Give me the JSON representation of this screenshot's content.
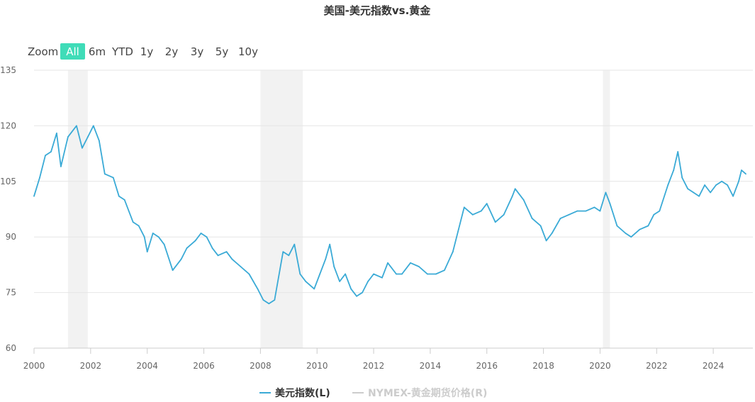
{
  "chart_data": {
    "type": "line",
    "title": "美国-美元指数vs.黄金",
    "zoom": {
      "label": "Zoom",
      "buttons": [
        "All",
        "6m",
        "YTD",
        "1y",
        "2y",
        "3y",
        "5y",
        "10y"
      ],
      "selected": "All"
    },
    "xlim": [
      2000,
      2025.4
    ],
    "ylim": [
      60,
      135
    ],
    "yticks": [
      60,
      75,
      90,
      105,
      120,
      135
    ],
    "xticks": [
      2000,
      2002,
      2004,
      2006,
      2008,
      2010,
      2012,
      2014,
      2016,
      2018,
      2020,
      2022,
      2024
    ],
    "grid": true,
    "legend_position": "bottom-center",
    "shaded_periods": [
      [
        2001.2,
        2001.9
      ],
      [
        2008.0,
        2009.5
      ],
      [
        2020.1,
        2020.35
      ]
    ],
    "colors": {
      "series": "#3aaad6",
      "band": "#f2f2f2",
      "inactive": "#cccccc",
      "active_button": "#3fdcb8"
    },
    "series": [
      {
        "name": "美元指数(L)",
        "active": true,
        "points": [
          [
            2000.0,
            101
          ],
          [
            2000.2,
            106
          ],
          [
            2000.4,
            112
          ],
          [
            2000.6,
            113
          ],
          [
            2000.8,
            118
          ],
          [
            2000.95,
            109
          ],
          [
            2001.2,
            117
          ],
          [
            2001.5,
            120
          ],
          [
            2001.7,
            114
          ],
          [
            2001.9,
            117
          ],
          [
            2002.1,
            120
          ],
          [
            2002.3,
            116
          ],
          [
            2002.5,
            107
          ],
          [
            2002.8,
            106
          ],
          [
            2003.0,
            101
          ],
          [
            2003.2,
            100
          ],
          [
            2003.5,
            94
          ],
          [
            2003.7,
            93
          ],
          [
            2003.9,
            90
          ],
          [
            2004.0,
            86
          ],
          [
            2004.2,
            91
          ],
          [
            2004.4,
            90
          ],
          [
            2004.6,
            88
          ],
          [
            2004.9,
            81
          ],
          [
            2005.2,
            84
          ],
          [
            2005.4,
            87
          ],
          [
            2005.7,
            89
          ],
          [
            2005.9,
            91
          ],
          [
            2006.1,
            90
          ],
          [
            2006.3,
            87
          ],
          [
            2006.5,
            85
          ],
          [
            2006.8,
            86
          ],
          [
            2007.0,
            84
          ],
          [
            2007.3,
            82
          ],
          [
            2007.6,
            80
          ],
          [
            2007.9,
            76
          ],
          [
            2008.1,
            73
          ],
          [
            2008.3,
            72
          ],
          [
            2008.5,
            73
          ],
          [
            2008.8,
            86
          ],
          [
            2009.0,
            85
          ],
          [
            2009.2,
            88
          ],
          [
            2009.4,
            80
          ],
          [
            2009.6,
            78
          ],
          [
            2009.9,
            76
          ],
          [
            2010.1,
            80
          ],
          [
            2010.3,
            84
          ],
          [
            2010.45,
            88
          ],
          [
            2010.6,
            82
          ],
          [
            2010.8,
            78
          ],
          [
            2011.0,
            80
          ],
          [
            2011.2,
            76
          ],
          [
            2011.4,
            74
          ],
          [
            2011.6,
            75
          ],
          [
            2011.8,
            78
          ],
          [
            2012.0,
            80
          ],
          [
            2012.3,
            79
          ],
          [
            2012.5,
            83
          ],
          [
            2012.8,
            80
          ],
          [
            2013.0,
            80
          ],
          [
            2013.3,
            83
          ],
          [
            2013.6,
            82
          ],
          [
            2013.9,
            80
          ],
          [
            2014.2,
            80
          ],
          [
            2014.5,
            81
          ],
          [
            2014.8,
            86
          ],
          [
            2015.0,
            92
          ],
          [
            2015.2,
            98
          ],
          [
            2015.5,
            96
          ],
          [
            2015.8,
            97
          ],
          [
            2016.0,
            99
          ],
          [
            2016.3,
            94
          ],
          [
            2016.6,
            96
          ],
          [
            2016.9,
            101
          ],
          [
            2017.0,
            103
          ],
          [
            2017.3,
            100
          ],
          [
            2017.6,
            95
          ],
          [
            2017.9,
            93
          ],
          [
            2018.1,
            89
          ],
          [
            2018.3,
            91
          ],
          [
            2018.6,
            95
          ],
          [
            2018.9,
            96
          ],
          [
            2019.2,
            97
          ],
          [
            2019.5,
            97
          ],
          [
            2019.8,
            98
          ],
          [
            2020.0,
            97
          ],
          [
            2020.2,
            102
          ],
          [
            2020.35,
            99
          ],
          [
            2020.6,
            93
          ],
          [
            2020.9,
            91
          ],
          [
            2021.1,
            90
          ],
          [
            2021.4,
            92
          ],
          [
            2021.7,
            93
          ],
          [
            2021.9,
            96
          ],
          [
            2022.1,
            97
          ],
          [
            2022.4,
            104
          ],
          [
            2022.6,
            108
          ],
          [
            2022.75,
            113
          ],
          [
            2022.9,
            106
          ],
          [
            2023.1,
            103
          ],
          [
            2023.3,
            102
          ],
          [
            2023.5,
            101
          ],
          [
            2023.7,
            104
          ],
          [
            2023.9,
            102
          ],
          [
            2024.1,
            104
          ],
          [
            2024.3,
            105
          ],
          [
            2024.5,
            104
          ],
          [
            2024.7,
            101
          ],
          [
            2024.9,
            105
          ],
          [
            2025.0,
            108
          ],
          [
            2025.15,
            107
          ]
        ]
      },
      {
        "name": "NYMEX-黄金期货价格(R)",
        "active": false,
        "points": []
      }
    ]
  }
}
